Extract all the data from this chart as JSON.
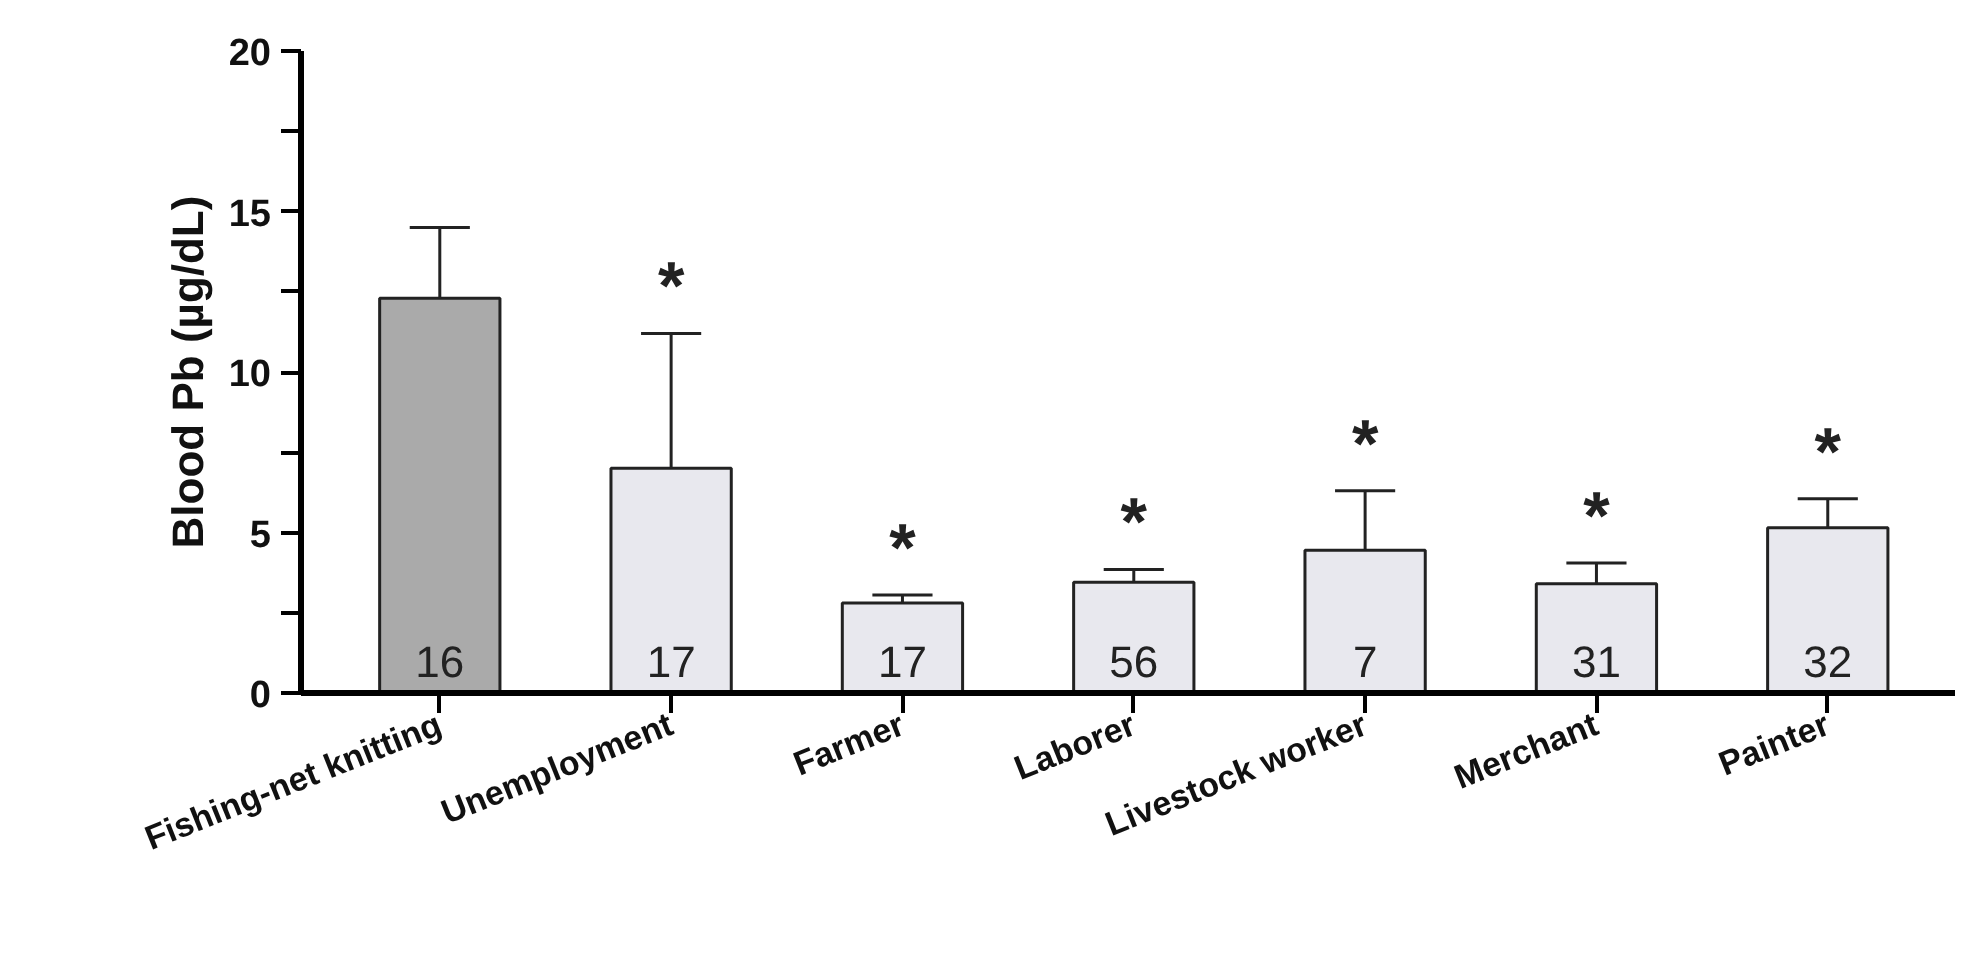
{
  "chart_data": {
    "type": "bar",
    "ylabel": "Blood Pb (µg/dL)",
    "categories": [
      "Fishing-net knitting",
      "Unemployment",
      "Farmer",
      "Laborer",
      "Livestock worker",
      "Merchant",
      "Painter"
    ],
    "values": [
      12.3,
      7.0,
      2.8,
      3.45,
      4.45,
      3.4,
      5.15
    ],
    "errors": [
      [
        12.3,
        14.5
      ],
      [
        7.0,
        11.2
      ],
      [
        2.8,
        3.05
      ],
      [
        3.45,
        3.85
      ],
      [
        4.45,
        6.3
      ],
      [
        3.4,
        4.05
      ],
      [
        5.15,
        6.05
      ]
    ],
    "colors": [
      "#aaaaaa",
      "#e8e8ee",
      "#e8e8ee",
      "#e8e8ee",
      "#e8e8ee",
      "#e8e8ee",
      "#e8e8ee"
    ],
    "ylim": [
      0,
      20
    ],
    "yticks": [
      0,
      {
        "value": 2.5,
        "label": null
      },
      5,
      {
        "value": 7.5,
        "label": null
      },
      10,
      {
        "value": 12.5,
        "label": null
      },
      15,
      {
        "value": 17.5,
        "label": null
      },
      20
    ],
    "grid": false,
    "legend": false,
    "annotations": [
      "16",
      "17",
      "17",
      "56",
      "7",
      "31",
      "32",
      {
        "text": "*",
        "x": "Unemployment",
        "y": 11.2
      },
      {
        "text": "*",
        "x": "Farmer",
        "y": 3.05
      },
      {
        "text": "*",
        "x": "Laborer",
        "y": 3.85
      },
      {
        "text": "*",
        "x": "Livestock worker",
        "y": 6.3
      },
      {
        "text": "*",
        "x": "Merchant",
        "y": 4.05
      },
      {
        "text": "*",
        "x": "Painter",
        "y": 6.05
      }
    ]
  }
}
